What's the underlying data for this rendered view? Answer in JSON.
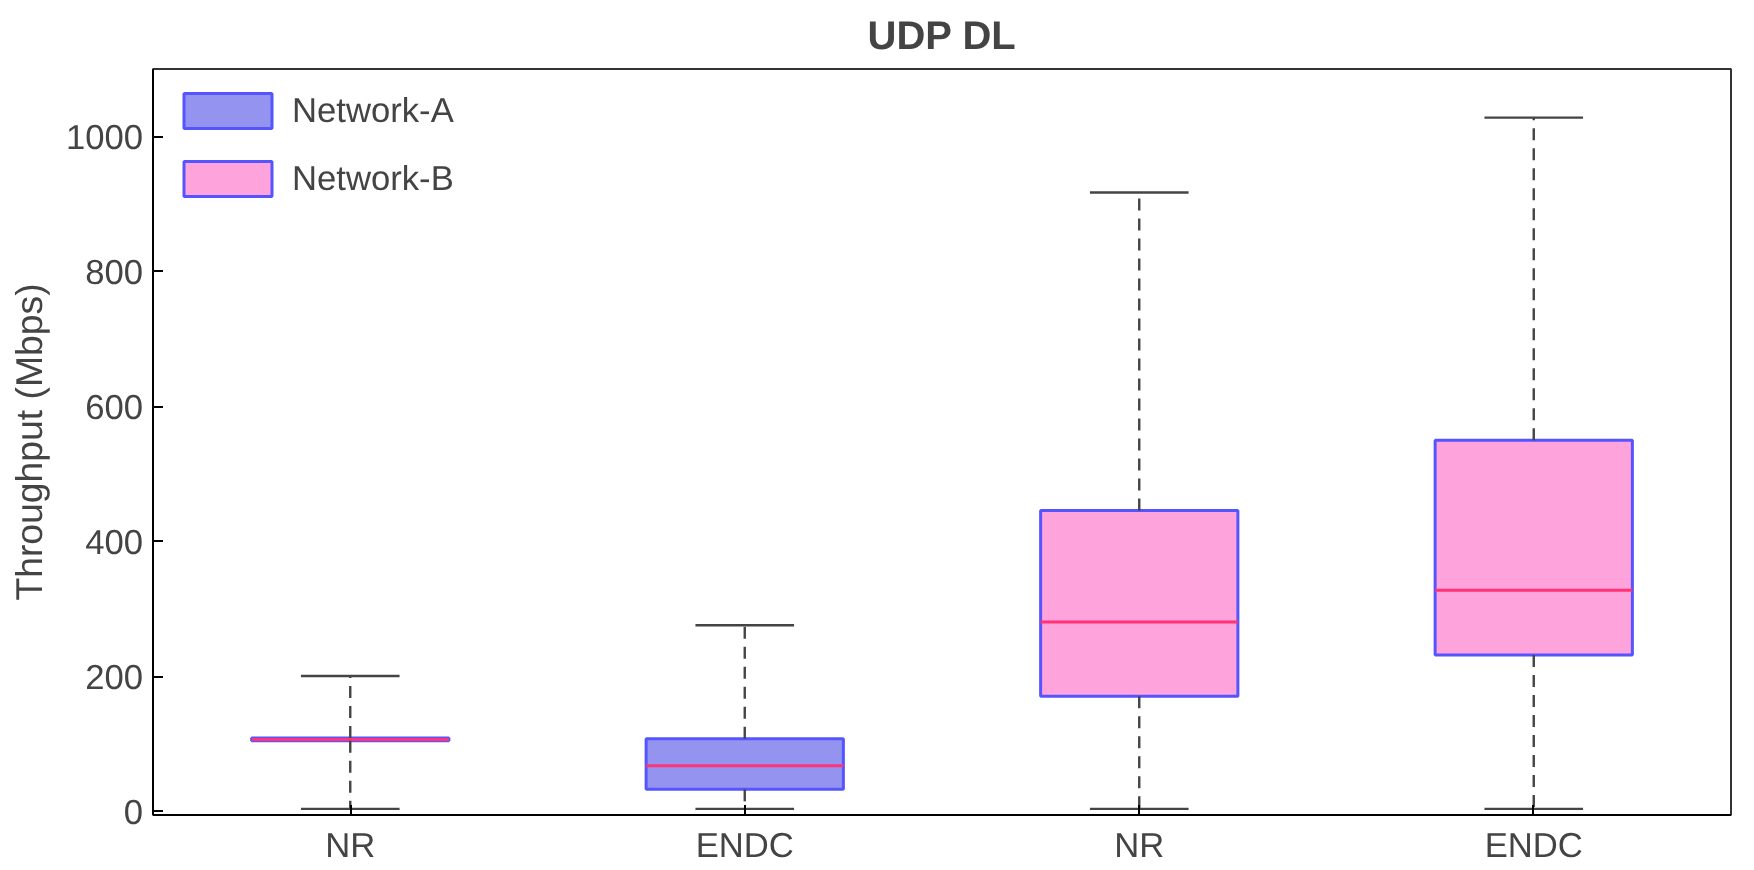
{
  "chart_data": {
    "type": "box",
    "title": "UDP DL",
    "ylabel": "Throughput (Mbps)",
    "categories": [
      "NR",
      "ENDC",
      "NR",
      "ENDC"
    ],
    "ylim": [
      -5,
      1100
    ],
    "yticks": [
      0,
      200,
      400,
      600,
      800,
      1000
    ],
    "grid": false,
    "legend": "top left",
    "series": [
      {
        "name": "Network-A",
        "color": "#9494f0",
        "boxes": [
          {
            "low": 4,
            "q1": 105,
            "median": 107,
            "q3": 109,
            "high": 201
          },
          {
            "low": 4,
            "q1": 33,
            "median": 68,
            "q3": 108,
            "high": 276
          },
          null,
          null
        ]
      },
      {
        "name": "Network-B",
        "color": "#ffa3dc",
        "boxes": [
          null,
          null,
          {
            "low": 4,
            "q1": 171,
            "median": 281,
            "q3": 446,
            "high": 917
          },
          {
            "low": 4,
            "q1": 232,
            "median": 328,
            "q3": 550,
            "high": 1028
          }
        ]
      }
    ]
  }
}
